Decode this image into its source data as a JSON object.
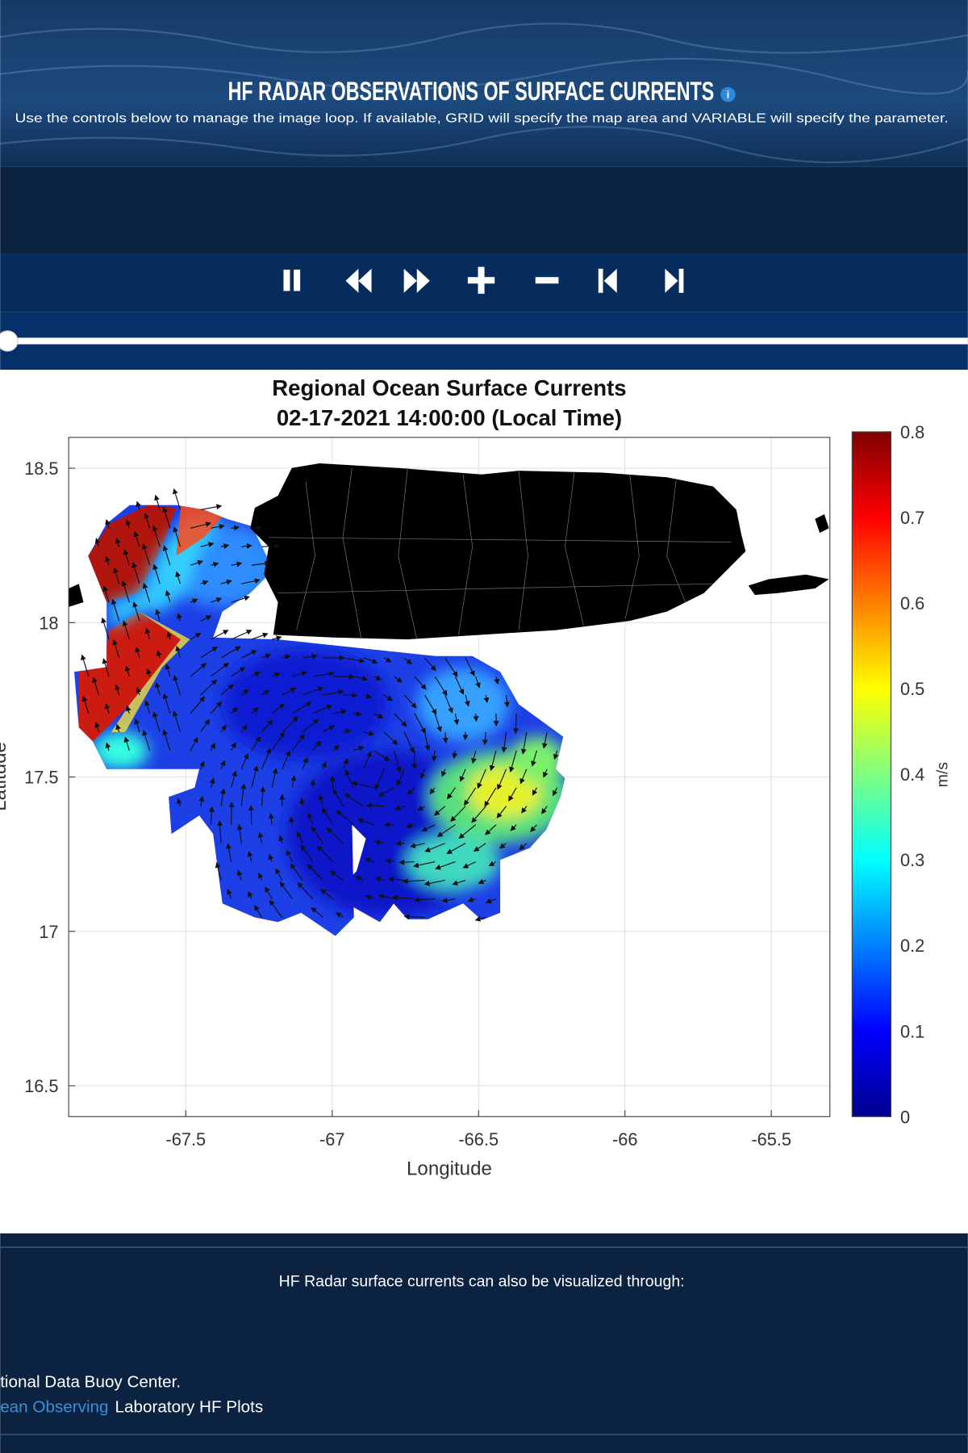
{
  "header": {
    "title": "HF RADAR OBSERVATIONS OF SURFACE CURRENTS",
    "subtitle": "Use the controls below to manage the image loop. If available, GRID will specify the map area and VARIABLE will specify the parameter."
  },
  "plot": {
    "title": [
      "Regional Ocean Surface Currents",
      "02-17-2021 14:00:00 (Local Time)"
    ],
    "xlabel": "Longitude",
    "ylabel": "Latitude",
    "xlim": [
      -67.9,
      -65.3
    ],
    "xticks": [
      -67.5,
      -67,
      -66.5,
      -66,
      -65.5
    ],
    "ylim": [
      16.4,
      18.6
    ],
    "yticks": [
      16.5,
      17,
      17.5,
      18,
      18.5
    ],
    "grid": true,
    "colorbar": {
      "label": "m/s",
      "lim": [
        0,
        0.8
      ],
      "ticks": [
        0,
        0.1,
        0.2,
        0.3,
        0.4,
        0.5,
        0.6,
        0.7,
        0.8
      ]
    }
  },
  "footer": {
    "text": "HF Radar surface currents can also be visualized through:",
    "lines": [
      "tional Data Buoy Center.",
      {
        "link": "ean Observing",
        "text": "Laboratory HF Plots"
      }
    ]
  }
}
